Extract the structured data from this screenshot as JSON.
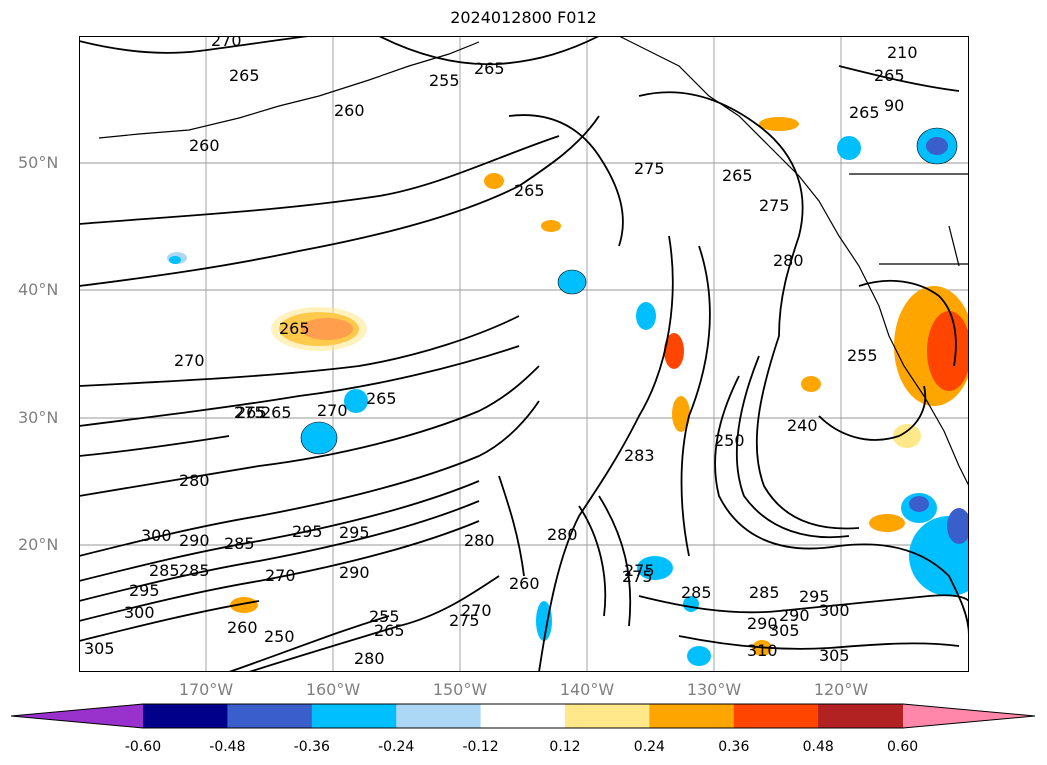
{
  "title": "2024012800 F012",
  "lat_labels": [
    "50°N",
    "40°N",
    "30°N",
    "20°N"
  ],
  "lon_labels": [
    "170°W",
    "160°W",
    "150°W",
    "140°W",
    "130°W",
    "120°W"
  ],
  "colorbar": {
    "ticks": [
      "-0.60",
      "-0.48",
      "-0.36",
      "-0.24",
      "-0.12",
      "0.12",
      "0.24",
      "0.36",
      "0.48",
      "0.60"
    ],
    "colors": [
      "#9932cc",
      "#00008b",
      "#3a5fcd",
      "#00bfff",
      "#add8f5",
      "#ffffff",
      "#ffe88a",
      "#ffa500",
      "#ff4500",
      "#b22222",
      "#ff88aa"
    ]
  },
  "contour_labels": [
    "270",
    "265",
    "255",
    "265",
    "260",
    "260",
    "210",
    "265",
    "265",
    "90",
    "275",
    "265",
    "265",
    "275",
    "280",
    "270",
    "265",
    "270",
    "275",
    "265",
    "265",
    "265",
    "280",
    "255",
    "240",
    "250",
    "283",
    "280",
    "295",
    "290",
    "285",
    "295",
    "300",
    "285",
    "295",
    "290",
    "285",
    "275",
    "270",
    "260",
    "255",
    "250",
    "265",
    "280",
    "300",
    "305",
    "270",
    "275",
    "290",
    "285",
    "285",
    "290",
    "295",
    "300",
    "305",
    "310",
    "305",
    "275",
    "280",
    "260"
  ]
}
